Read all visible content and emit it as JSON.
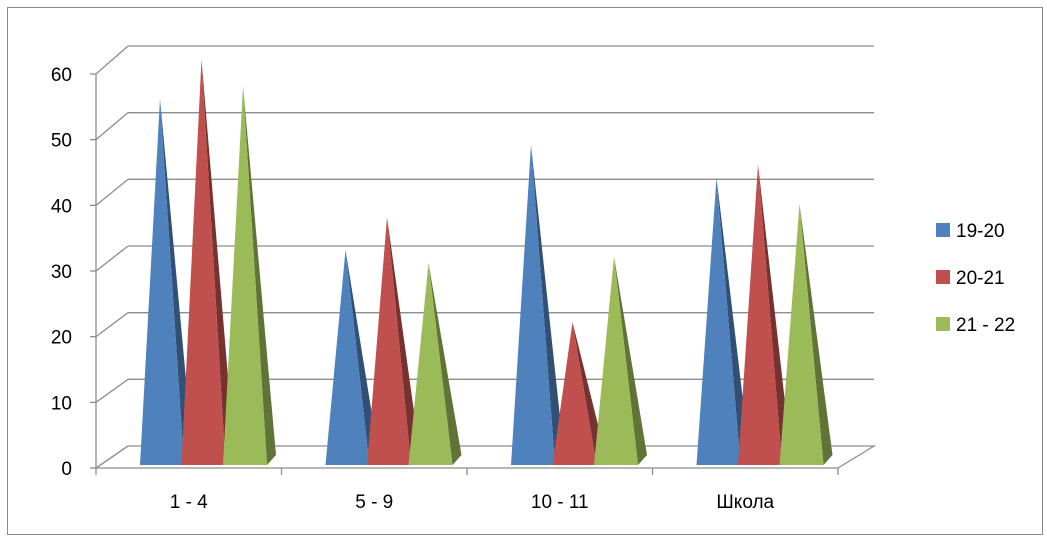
{
  "chart_data": {
    "type": "bar",
    "style": "3d-pyramid",
    "title": "",
    "xlabel": "",
    "ylabel": "",
    "categories": [
      "1 - 4",
      "5 - 9",
      "10 - 11",
      "Школа"
    ],
    "series": [
      {
        "name": "19-20",
        "values": [
          55,
          32,
          48,
          43
        ],
        "color": "#4f81bd"
      },
      {
        "name": "20-21",
        "values": [
          61,
          37,
          21,
          45
        ],
        "color": "#c0504d"
      },
      {
        "name": "21 - 22",
        "values": [
          57,
          30,
          31,
          39
        ],
        "color": "#9bbb59"
      }
    ],
    "yticks": [
      "0",
      "10",
      "20",
      "30",
      "40",
      "50",
      "60"
    ],
    "ylim": [
      0,
      60
    ],
    "grid": true,
    "legend": "right"
  }
}
